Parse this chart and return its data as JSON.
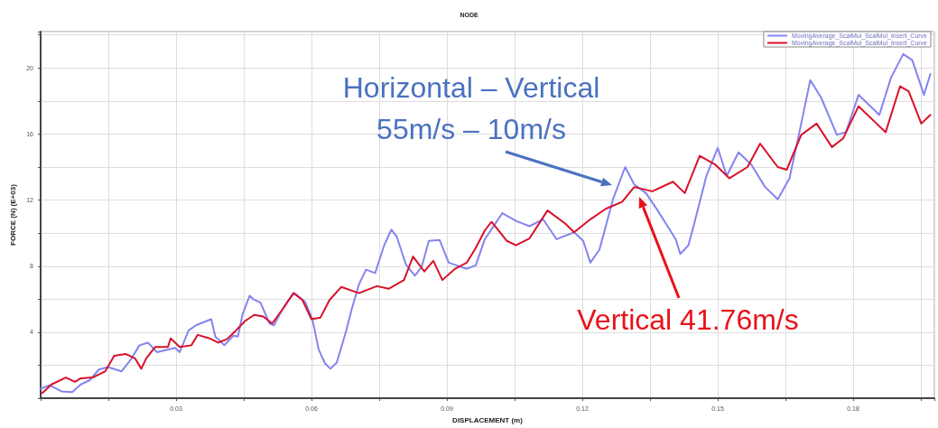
{
  "chart_data": {
    "type": "line",
    "title": "NODE",
    "xlabel": "DISPLACEMENT (m)",
    "ylabel": "FORCE (N) (E+03)",
    "xlim": [
      0,
      0.198
    ],
    "ylim": [
      0,
      22.2
    ],
    "xticks": [
      0.03,
      0.06,
      0.09,
      0.12,
      0.15,
      0.18
    ],
    "yticks": [
      4,
      8,
      12,
      16,
      20
    ],
    "grid": true,
    "legend": "top right",
    "marker": "none",
    "line_style": "solid",
    "annotations": [
      {
        "text": "Horizontal – Vertical\n55m/s – 10m/s",
        "x": 0.1266,
        "y": 12.9
      },
      "Vertical 41.76m/s"
    ],
    "series": [
      {
        "name": "MovingAverage_ScalMul_ScalMul_Insert_Curve",
        "color": "#8484f0",
        "x": [
          0,
          0.002,
          0.0046,
          0.007,
          0.0089,
          0.0109,
          0.0129,
          0.0149,
          0.0179,
          0.0199,
          0.0219,
          0.0238,
          0.0258,
          0.0298,
          0.0308,
          0.0328,
          0.0344,
          0.0378,
          0.0387,
          0.0407,
          0.0427,
          0.0437,
          0.0447,
          0.0463,
          0.0471,
          0.0487,
          0.0507,
          0.0517,
          0.0531,
          0.0546,
          0.0562,
          0.0586,
          0.0602,
          0.0616,
          0.063,
          0.0642,
          0.0656,
          0.0676,
          0.069,
          0.0705,
          0.0721,
          0.0741,
          0.0761,
          0.0777,
          0.0789,
          0.0809,
          0.0829,
          0.0844,
          0.086,
          0.0884,
          0.0904,
          0.0944,
          0.0964,
          0.0984,
          0.1023,
          0.1053,
          0.1083,
          0.1113,
          0.1143,
          0.1182,
          0.1202,
          0.1218,
          0.1238,
          0.1268,
          0.1295,
          0.1315,
          0.1341,
          0.1367,
          0.1407,
          0.1417,
          0.1435,
          0.1447,
          0.1475,
          0.15,
          0.152,
          0.1546,
          0.1574,
          0.1605,
          0.1633,
          0.1659,
          0.1685,
          0.1705,
          0.1729,
          0.1764,
          0.1784,
          0.1812,
          0.1844,
          0.1858,
          0.1884,
          0.1911,
          0.1931,
          0.1957,
          0.1971
        ],
        "values": [
          0.58,
          0.79,
          0.42,
          0.37,
          0.84,
          1.1,
          1.74,
          1.89,
          1.63,
          2.32,
          3.21,
          3.37,
          2.79,
          3.05,
          2.79,
          4.11,
          4.42,
          4.79,
          3.74,
          3.21,
          3.79,
          3.74,
          5.05,
          6.21,
          6.0,
          5.79,
          4.53,
          4.42,
          5.16,
          5.84,
          6.37,
          5.84,
          4.79,
          2.95,
          2.11,
          1.79,
          2.16,
          4.0,
          5.47,
          6.89,
          7.79,
          7.58,
          9.26,
          10.21,
          9.79,
          8.11,
          7.42,
          7.95,
          9.53,
          9.58,
          8.21,
          7.84,
          8.05,
          9.63,
          11.21,
          10.74,
          10.42,
          10.84,
          9.63,
          10.05,
          9.53,
          8.21,
          9.0,
          12.05,
          14.0,
          12.95,
          12.42,
          11.37,
          9.63,
          8.74,
          9.26,
          10.47,
          13.47,
          15.16,
          13.47,
          14.89,
          14.16,
          12.79,
          12.05,
          13.32,
          16.63,
          19.26,
          18.21,
          15.95,
          16.11,
          18.37,
          17.53,
          17.16,
          19.42,
          20.84,
          20.47,
          18.37,
          19.63
        ]
      },
      {
        "name": "MovingAverage_ScalMul_ScalMul_Insert_Curve",
        "color": "#d9102a",
        "x": [
          0.0004,
          0.0024,
          0.0056,
          0.0076,
          0.0089,
          0.0115,
          0.0143,
          0.0163,
          0.0189,
          0.0209,
          0.0223,
          0.0234,
          0.0254,
          0.0282,
          0.0288,
          0.0308,
          0.0334,
          0.0348,
          0.0374,
          0.0393,
          0.0413,
          0.0433,
          0.0453,
          0.0473,
          0.0493,
          0.0513,
          0.0541,
          0.056,
          0.058,
          0.06,
          0.062,
          0.064,
          0.0666,
          0.0705,
          0.0745,
          0.0771,
          0.0805,
          0.0825,
          0.085,
          0.087,
          0.089,
          0.0918,
          0.0944,
          0.0964,
          0.0984,
          0.0999,
          0.1013,
          0.1033,
          0.1053,
          0.1083,
          0.1123,
          0.1162,
          0.1182,
          0.1218,
          0.1252,
          0.1288,
          0.1315,
          0.1355,
          0.1401,
          0.1427,
          0.146,
          0.1494,
          0.1526,
          0.1566,
          0.1594,
          0.1633,
          0.1653,
          0.1685,
          0.1719,
          0.1753,
          0.1778,
          0.1812,
          0.1852,
          0.1872,
          0.1904,
          0.1923,
          0.1951,
          0.1971
        ],
        "values": [
          0.32,
          0.84,
          1.26,
          1.0,
          1.21,
          1.26,
          1.63,
          2.58,
          2.68,
          2.42,
          1.79,
          2.42,
          3.11,
          3.11,
          3.63,
          3.11,
          3.21,
          3.84,
          3.63,
          3.37,
          3.58,
          4.11,
          4.68,
          5.05,
          4.95,
          4.53,
          5.58,
          6.37,
          5.95,
          4.79,
          4.89,
          5.95,
          6.74,
          6.37,
          6.79,
          6.63,
          7.16,
          8.58,
          7.68,
          8.32,
          7.16,
          7.84,
          8.21,
          9.11,
          10.16,
          10.68,
          10.21,
          9.53,
          9.26,
          9.68,
          11.37,
          10.58,
          10.05,
          10.84,
          11.47,
          11.89,
          12.79,
          12.53,
          13.11,
          12.42,
          14.68,
          14.16,
          13.32,
          14.0,
          15.42,
          14.0,
          13.84,
          15.95,
          16.63,
          15.21,
          15.74,
          17.68,
          16.63,
          16.11,
          18.89,
          18.58,
          16.63,
          17.16
        ]
      }
    ]
  }
}
